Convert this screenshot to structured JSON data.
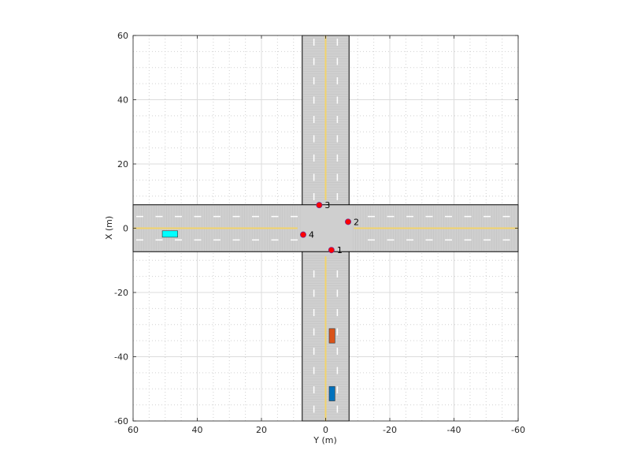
{
  "chart_data": {
    "type": "scatter",
    "title": "",
    "xlabel": "Y (m)",
    "ylabel": "X (m)",
    "xlim": [
      60,
      -60
    ],
    "ylim": [
      -60,
      60
    ],
    "x_ticks": [
      "60",
      "40",
      "20",
      "0",
      "-20",
      "-40",
      "-60"
    ],
    "x_tick_values": [
      60,
      40,
      20,
      0,
      -20,
      -40,
      -60
    ],
    "y_ticks": [
      "60",
      "40",
      "20",
      "0",
      "-20",
      "-40",
      "-60"
    ],
    "y_tick_values": [
      60,
      40,
      20,
      0,
      -20,
      -40,
      -60
    ],
    "grid": "on",
    "roads": [
      {
        "orientation": "vertical",
        "center": 0,
        "half_width": 7.3,
        "centerline_color": "#f2d36b"
      },
      {
        "orientation": "horizontal",
        "center": 0,
        "half_width": 7.3,
        "centerline_color": "#f2d36b"
      }
    ],
    "waypoints": [
      {
        "label": "1",
        "y": -1.8,
        "x": -6.8
      },
      {
        "label": "2",
        "y": -7.0,
        "x": 2.0
      },
      {
        "label": "3",
        "y": 2.0,
        "x": 7.2
      },
      {
        "label": "4",
        "y": 7.0,
        "x": -2.0
      }
    ],
    "waypoint_color": "#ff0000",
    "vehicles": [
      {
        "name": "cyan-vehicle",
        "y_center": 48.5,
        "x_center": -1.8,
        "length_y": 4.8,
        "length_x": 2.0,
        "color": "#00ffff"
      },
      {
        "name": "orange-vehicle",
        "y_center": -2.0,
        "x_center": -33.5,
        "length_y": 1.8,
        "length_x": 4.5,
        "color": "#d95319"
      },
      {
        "name": "blue-vehicle",
        "y_center": -2.0,
        "x_center": -51.5,
        "length_y": 1.8,
        "length_x": 4.5,
        "color": "#0072bd"
      }
    ]
  }
}
